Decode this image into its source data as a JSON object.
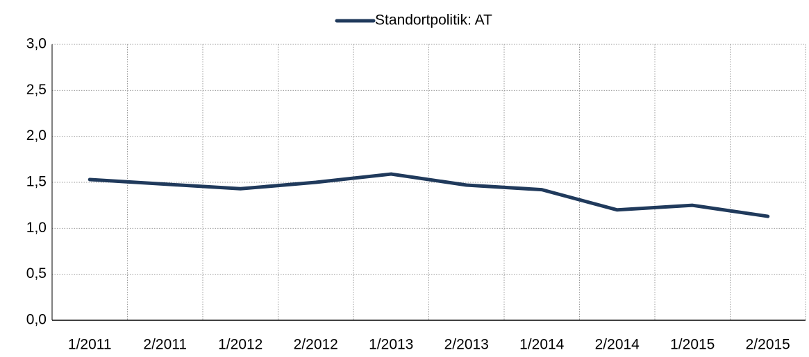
{
  "chart_data": {
    "type": "line",
    "categories": [
      "1/2011",
      "2/2011",
      "1/2012",
      "2/2012",
      "1/2013",
      "2/2013",
      "1/2014",
      "2/2014",
      "1/2015",
      "2/2015"
    ],
    "series": [
      {
        "name": "Standortpolitik: AT",
        "color": "#203a5c",
        "values": [
          1.53,
          1.48,
          1.43,
          1.5,
          1.59,
          1.47,
          1.42,
          1.2,
          1.25,
          1.13
        ]
      }
    ],
    "ylim": [
      0,
      3
    ],
    "yticks": [
      {
        "value": 0,
        "label": "0,0"
      },
      {
        "value": 0.5,
        "label": "0,5"
      },
      {
        "value": 1,
        "label": "1,0"
      },
      {
        "value": 1.5,
        "label": "1,5"
      },
      {
        "value": 2,
        "label": "2,0"
      },
      {
        "value": 2.5,
        "label": "2,5"
      },
      {
        "value": 3,
        "label": "3,0"
      }
    ],
    "grid": true,
    "legend": "top"
  }
}
